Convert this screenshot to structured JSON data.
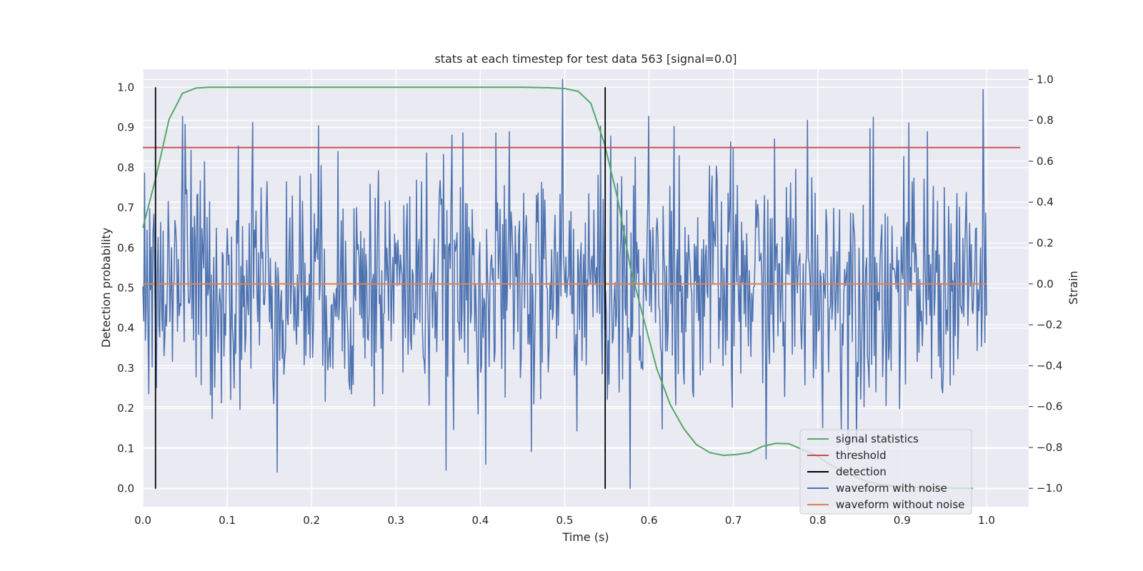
{
  "chart_data": {
    "type": "line",
    "title": "stats at each timestep for test data 563 [signal=0.0]",
    "xlabel": "Time (s)",
    "ylabel_left": "Detection probability",
    "ylabel_right": "Strain",
    "xlim": [
      0.0,
      1.05
    ],
    "ylim_left": [
      -0.045,
      1.045
    ],
    "ylim_right": [
      -1.09,
      1.05
    ],
    "xticks": [
      "0.0",
      "0.1",
      "0.2",
      "0.3",
      "0.4",
      "0.5",
      "0.6",
      "0.7",
      "0.8",
      "0.9",
      "1.0"
    ],
    "xtick_values": [
      0,
      0.1,
      0.2,
      0.3,
      0.4,
      0.5,
      0.6,
      0.7,
      0.8,
      0.9,
      1.0
    ],
    "yticks_left": [
      "0.0",
      "0.1",
      "0.2",
      "0.3",
      "0.4",
      "0.5",
      "0.6",
      "0.7",
      "0.8",
      "0.9",
      "1.0"
    ],
    "ytick_left_values": [
      0,
      0.1,
      0.2,
      0.3,
      0.4,
      0.5,
      0.6,
      0.7,
      0.8,
      0.9,
      1.0
    ],
    "yticks_right": [
      "−1.0",
      "−0.8",
      "−0.6",
      "−0.4",
      "−0.2",
      "0.0",
      "0.2",
      "0.4",
      "0.6",
      "0.8",
      "1.0"
    ],
    "ytick_right_values": [
      -1.0,
      -0.8,
      -0.6,
      -0.4,
      -0.2,
      0.0,
      0.2,
      0.4,
      0.6,
      0.8,
      1.0
    ],
    "grid": true,
    "legend_position": "lower-right",
    "series": [
      {
        "name": "signal statistics",
        "axis": "left",
        "color": "#55a868",
        "x": [
          0.0,
          0.016,
          0.031,
          0.047,
          0.063,
          0.078,
          0.1,
          0.2,
          0.3,
          0.4,
          0.45,
          0.48,
          0.5,
          0.516,
          0.531,
          0.547,
          0.563,
          0.578,
          0.594,
          0.609,
          0.625,
          0.641,
          0.656,
          0.672,
          0.688,
          0.703,
          0.719,
          0.734,
          0.75,
          0.766,
          0.781,
          0.797,
          0.813,
          0.828,
          0.844,
          0.859,
          0.875,
          0.891,
          0.906,
          0.922,
          0.938,
          0.953,
          0.969,
          0.984
        ],
        "y": [
          0.65,
          0.78,
          0.92,
          0.985,
          0.998,
          1.0,
          1.0,
          1.0,
          1.0,
          1.0,
          1.0,
          0.999,
          0.997,
          0.99,
          0.96,
          0.86,
          0.72,
          0.55,
          0.42,
          0.3,
          0.21,
          0.15,
          0.11,
          0.09,
          0.083,
          0.085,
          0.09,
          0.105,
          0.113,
          0.112,
          0.098,
          0.085,
          0.062,
          0.045,
          0.03,
          0.018,
          0.01,
          0.006,
          0.004,
          0.003,
          0.002,
          0.002,
          0.001,
          0.001
        ]
      },
      {
        "name": "threshold",
        "axis": "left",
        "color": "#c44e52",
        "x": [
          0.0,
          1.04
        ],
        "y": [
          0.85,
          0.85
        ]
      },
      {
        "name": "detection",
        "axis": "left",
        "color": "#000000",
        "x_positions": [
          0.015,
          0.548
        ],
        "y": [
          0.0,
          1.0
        ]
      },
      {
        "name": "waveform with noise",
        "axis": "right",
        "color": "#4c72b0",
        "x_range": [
          0.0,
          1.0
        ],
        "n_points": 1000,
        "description_std": 0.3,
        "notable_points": [
          {
            "x": 0.047,
            "y": 0.82
          },
          {
            "x": 0.05,
            "y": 0.78
          },
          {
            "x": 0.13,
            "y": 0.79
          },
          {
            "x": 0.497,
            "y": 1.0
          },
          {
            "x": 0.578,
            "y": -1.0
          },
          {
            "x": 0.6,
            "y": 0.82
          },
          {
            "x": 0.63,
            "y": 0.77
          },
          {
            "x": 0.788,
            "y": 0.8
          },
          {
            "x": 0.862,
            "y": 0.76
          },
          {
            "x": 0.46,
            "y": -0.82
          }
        ]
      },
      {
        "name": "waveform without noise",
        "axis": "right",
        "color": "#dd8452",
        "x": [
          0.0,
          1.0
        ],
        "y": [
          0.0,
          0.0
        ]
      }
    ]
  }
}
